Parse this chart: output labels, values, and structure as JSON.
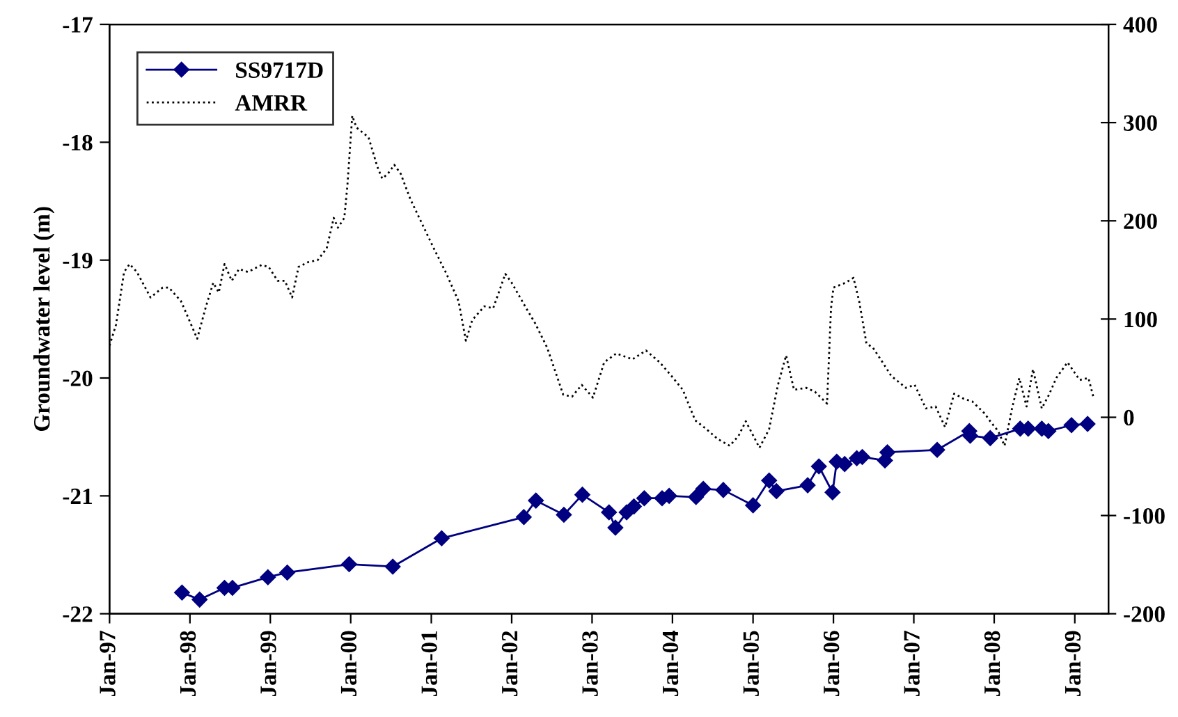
{
  "chart_data": {
    "type": "line",
    "ylabel": "Groundwater level (m)",
    "xlim": [
      "1997-01-01",
      "2009-06-03"
    ],
    "xticks": [
      {
        "value": "1997-01-01",
        "label": "Jan-97"
      },
      {
        "value": "1998-01-01",
        "label": "Jan-98"
      },
      {
        "value": "1999-01-01",
        "label": "Jan-99"
      },
      {
        "value": "2000-01-01",
        "label": "Jan-00"
      },
      {
        "value": "2001-01-01",
        "label": "Jan-01"
      },
      {
        "value": "2002-01-01",
        "label": "Jan-02"
      },
      {
        "value": "2003-01-01",
        "label": "Jan-03"
      },
      {
        "value": "2004-01-01",
        "label": "Jan-04"
      },
      {
        "value": "2005-01-01",
        "label": "Jan-05"
      },
      {
        "value": "2006-01-01",
        "label": "Jan-06"
      },
      {
        "value": "2007-01-01",
        "label": "Jan-07"
      },
      {
        "value": "2008-01-01",
        "label": "Jan-08"
      },
      {
        "value": "2009-01-01",
        "label": "Jan-09"
      }
    ],
    "ylim": [
      -22,
      -17
    ],
    "yticks": [
      -22,
      -21,
      -20,
      -19,
      -18,
      -17
    ],
    "y2lim": [
      -200,
      400
    ],
    "y2ticks": [
      -200,
      -100,
      0,
      100,
      200,
      300,
      400
    ],
    "grid": false,
    "legend": "top left",
    "series": [
      {
        "name": "SS9717D",
        "color": "#000080",
        "marker": "diamond",
        "line_style": "solid",
        "x": [
          "1997-11-26",
          "1998-02-14",
          "1998-06-07",
          "1998-07-13",
          "1998-12-21",
          "1999-03-19",
          "1999-12-25",
          "2000-07-10",
          "2001-02-17",
          "2002-02-25",
          "2002-04-21",
          "2002-08-26",
          "2002-11-18",
          "2003-03-19",
          "2003-04-17",
          "2003-06-07",
          "2003-07-10",
          "2003-08-26",
          "2003-11-15",
          "2003-12-17",
          "2004-04-17",
          "2004-05-20",
          "2004-08-19",
          "2005-01-01",
          "2005-03-15",
          "2005-04-17",
          "2005-09-06",
          "2005-10-27",
          "2005-12-28",
          "2006-01-16",
          "2006-02-21",
          "2006-04-17",
          "2006-05-12",
          "2006-08-23",
          "2006-09-03",
          "2007-04-17",
          "2007-09-10",
          "2007-09-14",
          "2007-12-14",
          "2008-04-28",
          "2008-06-03",
          "2008-08-04",
          "2008-09-03",
          "2008-12-17",
          "2009-02-28"
        ],
        "values": [
          -21.82,
          -21.88,
          -21.78,
          -21.78,
          -21.69,
          -21.65,
          -21.58,
          -21.6,
          -21.36,
          -21.18,
          -21.04,
          -21.16,
          -20.99,
          -21.14,
          -21.27,
          -21.14,
          -21.09,
          -21.02,
          -21.02,
          -21.0,
          -21.01,
          -20.94,
          -20.95,
          -21.08,
          -20.87,
          -20.96,
          -20.91,
          -20.75,
          -20.97,
          -20.71,
          -20.73,
          -20.68,
          -20.67,
          -20.7,
          -20.63,
          -20.61,
          -20.45,
          -20.49,
          -20.51,
          -20.43,
          -20.43,
          -20.43,
          -20.45,
          -20.4,
          -20.39
        ]
      },
      {
        "name": "AMRR",
        "color": "#000000",
        "marker": "none",
        "line_style": "dotted",
        "axis": "y2",
        "x": [
          "1997-01-01",
          "1997-01-30",
          "1997-03-08",
          "1997-04-02",
          "1997-05-05",
          "1997-07-06",
          "1997-08-30",
          "1997-09-28",
          "1997-11-22",
          "1998-02-03",
          "1998-03-15",
          "1998-04-17",
          "1998-05-12",
          "1998-06-07",
          "1998-07-10",
          "1998-08-12",
          "1998-09-21",
          "1998-11-22",
          "1998-12-25",
          "1999-02-03",
          "1999-03-08",
          "1999-04-10",
          "1999-05-09",
          "1999-06-22",
          "1999-08-04",
          "1999-09-14",
          "1999-10-16",
          "1999-11-04",
          "1999-12-03",
          "1999-12-17",
          "2000-01-08",
          "2000-01-27",
          "2000-03-22",
          "2000-05-01",
          "2000-05-23",
          "2000-06-18",
          "2000-07-17",
          "2000-08-15",
          "2000-09-28",
          "2000-11-18",
          "2001-01-08",
          "2001-03-11",
          "2001-05-05",
          "2001-06-07",
          "2001-07-06",
          "2001-08-30",
          "2001-10-09",
          "2001-12-03",
          "2002-01-01",
          "2002-03-08",
          "2002-04-17",
          "2002-06-11",
          "2002-08-23",
          "2002-10-02",
          "2002-11-15",
          "2003-01-05",
          "2003-02-25",
          "2003-04-21",
          "2003-07-03",
          "2003-09-03",
          "2003-11-04",
          "2003-12-28",
          "2004-02-17",
          "2004-04-13",
          "2004-06-03",
          "2004-07-24",
          "2004-09-17",
          "2004-10-27",
          "2004-11-29",
          "2005-01-30",
          "2005-03-15",
          "2005-04-24",
          "2005-05-31",
          "2005-07-06",
          "2005-08-30",
          "2005-10-09",
          "2005-12-03",
          "2005-12-21",
          "2006-01-01",
          "2006-02-25",
          "2006-04-02",
          "2006-04-28",
          "2006-05-31",
          "2006-06-29",
          "2006-08-12",
          "2006-09-21",
          "2006-11-26",
          "2007-01-05",
          "2007-02-25",
          "2007-04-10",
          "2007-05-23",
          "2007-07-03",
          "2007-08-15",
          "2007-09-24",
          "2007-11-18",
          "2007-12-17",
          "2008-01-19",
          "2008-02-17",
          "2008-03-22",
          "2008-04-24",
          "2008-05-27",
          "2008-06-25",
          "2008-08-04",
          "2008-09-06",
          "2008-10-09",
          "2008-11-29",
          "2009-01-23",
          "2009-03-04",
          "2009-03-26"
        ],
        "values": [
          73,
          94,
          148,
          156,
          148,
          122,
          132,
          132,
          118,
          80,
          113,
          137,
          127,
          156,
          139,
          151,
          148,
          155,
          153,
          139,
          139,
          122,
          153,
          158,
          160,
          172,
          203,
          193,
          203,
          236,
          307,
          295,
          285,
          255,
          243,
          248,
          257,
          248,
          222,
          198,
          174,
          146,
          118,
          78,
          99,
          113,
          111,
          146,
          137,
          111,
          96,
          71,
          23,
          21,
          33,
          20,
          56,
          65,
          59,
          68,
          56,
          42,
          28,
          -3,
          -12,
          -22,
          -29,
          -19,
          -4,
          -31,
          -12,
          33,
          63,
          28,
          30,
          26,
          14,
          111,
          132,
          137,
          142,
          118,
          75,
          71,
          56,
          42,
          30,
          33,
          9,
          11,
          -10,
          24,
          19,
          16,
          4,
          -5,
          -14,
          -29,
          9,
          40,
          11,
          49,
          9,
          23,
          40,
          56,
          38,
          40,
          21
        ]
      }
    ]
  }
}
